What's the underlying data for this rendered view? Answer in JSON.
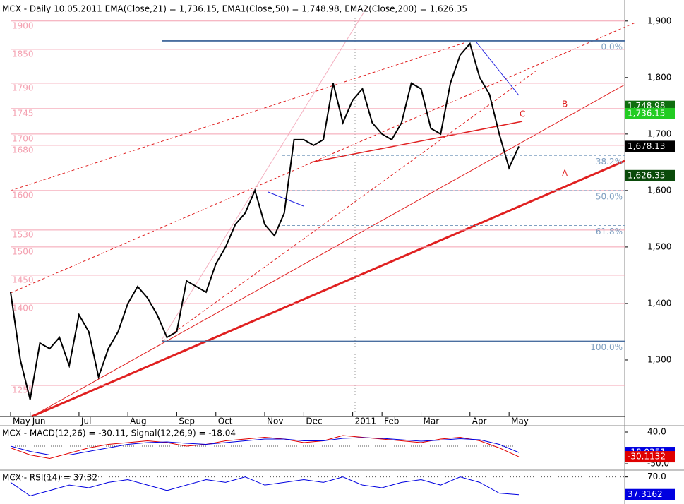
{
  "chart_data": [
    {
      "type": "line",
      "title": "MCX - Daily 10.05.2011 EMA(Close,21) = 1,736.15, EMA1(Close,50) = 1,748.98, EMA2(Close,200) = 1,626.35",
      "categories": [
        "May",
        null,
        "Jun",
        null,
        null,
        null,
        null,
        "Jul",
        null,
        null,
        null,
        null,
        "Aug",
        null,
        null,
        null,
        null,
        "Sep",
        null,
        null,
        null,
        "Oct",
        null,
        null,
        null,
        null,
        "Nov",
        null,
        null,
        null,
        "Dec",
        null,
        null,
        null,
        null,
        "2011",
        null,
        null,
        "Feb",
        null,
        null,
        null,
        "Mar",
        null,
        null,
        null,
        null,
        "Apr",
        null,
        null,
        null,
        "May",
        null
      ],
      "series": [
        {
          "name": "MCX",
          "color": "#000000",
          "values": [
            1420,
            1300,
            1230,
            1330,
            1320,
            1340,
            1290,
            1380,
            1350,
            1270,
            1320,
            1350,
            1400,
            1430,
            1410,
            1380,
            1340,
            1350,
            1440,
            1430,
            1420,
            1470,
            1500,
            1540,
            1560,
            1600,
            1540,
            1520,
            1560,
            1690,
            1690,
            1680,
            1690,
            1790,
            1720,
            1760,
            1780,
            1720,
            1700,
            1690,
            1720,
            1790,
            1780,
            1710,
            1700,
            1790,
            1840,
            1860,
            1800,
            1770,
            1700,
            1640,
            1678
          ]
        }
      ],
      "ylim": [
        1200,
        1931
      ],
      "yticks": [
        {
          "value": 1900,
          "label": "1,900"
        },
        {
          "value": 1800,
          "label": "1,800"
        },
        {
          "value": 1700,
          "label": "1,700"
        },
        {
          "value": 1600,
          "label": "1,600"
        },
        {
          "value": 1500,
          "label": "1,500"
        },
        {
          "value": 1400,
          "label": "1,400"
        },
        {
          "value": 1300,
          "label": "1,300"
        }
      ],
      "levels": [
        1900,
        1850,
        1790,
        1745,
        1700,
        1680,
        1600,
        1530,
        1500,
        1450,
        1400,
        1255
      ],
      "level_color": "#f4a0b0",
      "fib": [
        {
          "value": 1865,
          "label": "0.0%"
        },
        {
          "value": 1662,
          "label": "38.2%"
        },
        {
          "value": 1600,
          "label": "50.0%"
        },
        {
          "value": 1538,
          "label": "61.8%"
        },
        {
          "value": 1333,
          "label": "100.0%"
        }
      ],
      "fib_color": "#7f9fc0",
      "last_values": [
        {
          "value": 1748.98,
          "label": "1,748.98",
          "color": "#0f6e0f"
        },
        {
          "value": 1736.15,
          "label": "1,736.15",
          "color": "#22cc22"
        },
        {
          "value": 1678.13,
          "label": "1,678.13",
          "color": "#000000"
        },
        {
          "value": 1626.35,
          "label": "1,626.35",
          "color": "#0a4a0a"
        }
      ],
      "annotations": [
        "A",
        "B",
        "C"
      ]
    },
    {
      "type": "macd",
      "title": "MCX - MACD(12,26) = -30.11, Signal(12,26,9) = -18.04",
      "series": [
        {
          "name": "MACD",
          "color": "#e00000",
          "values": [
            -5,
            -25,
            -35,
            -20,
            -5,
            5,
            10,
            15,
            10,
            0,
            5,
            15,
            20,
            25,
            20,
            10,
            15,
            30,
            25,
            20,
            15,
            10,
            20,
            25,
            15,
            -5,
            -30.11
          ]
        },
        {
          "name": "Signal",
          "color": "#0000e0",
          "values": [
            0,
            -15,
            -25,
            -25,
            -15,
            -5,
            5,
            10,
            12,
            8,
            5,
            10,
            15,
            20,
            20,
            15,
            15,
            22,
            24,
            22,
            18,
            14,
            17,
            21,
            18,
            5,
            -18.04
          ]
        }
      ],
      "ylim": [
        -60,
        50
      ],
      "yticks": [
        {
          "value": 40,
          "label": "40.0"
        },
        {
          "value": -50,
          "label": "-50.0"
        }
      ],
      "last_values": [
        {
          "value": -18.0351,
          "label": "-18.0351",
          "color": "#0000e0"
        },
        {
          "value": -30.1132,
          "label": "-30.1132",
          "color": "#e00000"
        }
      ]
    },
    {
      "type": "rsi",
      "title": "MCX - RSI(14) = 37.32",
      "series": [
        {
          "name": "RSI",
          "color": "#0000e0",
          "values": [
            60,
            35,
            45,
            55,
            50,
            60,
            65,
            55,
            45,
            55,
            65,
            60,
            70,
            55,
            60,
            65,
            60,
            70,
            55,
            50,
            60,
            65,
            55,
            70,
            60,
            40,
            37.32
          ]
        }
      ],
      "ylim": [
        20,
        80
      ],
      "yticks": [
        {
          "value": 70,
          "label": "70.0"
        }
      ],
      "last_values": [
        {
          "value": 37.3162,
          "label": "37.3162",
          "color": "#0000e0"
        }
      ]
    }
  ]
}
